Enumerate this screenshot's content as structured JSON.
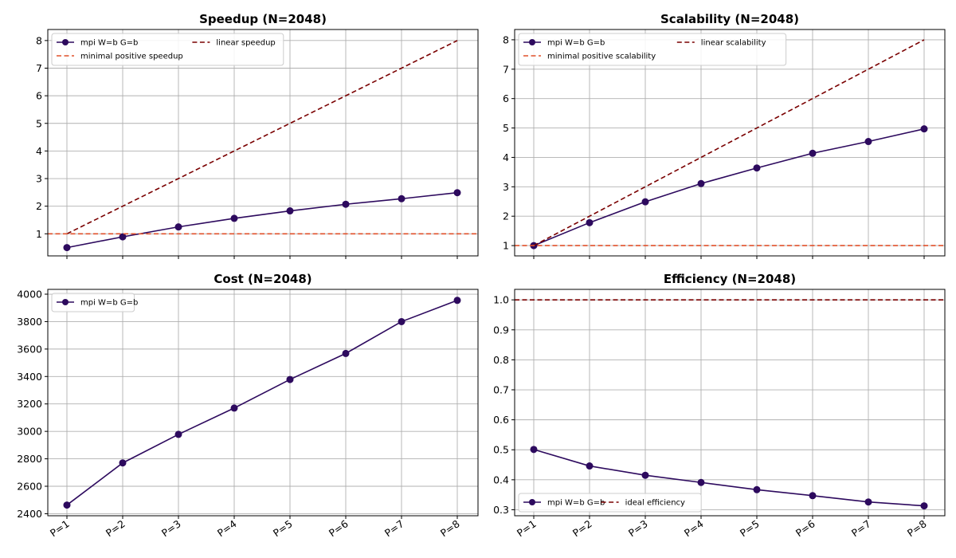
{
  "colors": {
    "mpi": "#2d0a5e",
    "linear": "#7a0000",
    "minimal": "#e0502a",
    "ideal": "#7a0000",
    "grid": "#b0b0b0"
  },
  "chart_data": [
    {
      "type": "line",
      "title": "Speedup (N=2048)",
      "categories": [
        "P=1",
        "P=2",
        "P=3",
        "P=4",
        "P=5",
        "P=6",
        "P=7",
        "P=8"
      ],
      "ylim": [
        0.2,
        8.4
      ],
      "yticks": [
        1,
        2,
        3,
        4,
        5,
        6,
        7,
        8
      ],
      "show_xticklabels": false,
      "grid": true,
      "legend": {
        "placement": "upper-left",
        "columns": 2
      },
      "series": [
        {
          "name": "mpi W=b G=b",
          "values": [
            0.5,
            0.89,
            1.25,
            1.56,
            1.83,
            2.07,
            2.27,
            2.49
          ],
          "style": "solid-marker",
          "color": "#2d0a5e"
        },
        {
          "name": "linear speedup",
          "values": [
            1,
            2,
            3,
            4,
            5,
            6,
            7,
            8
          ],
          "style": "dashed",
          "color": "#7a0000"
        },
        {
          "name": "minimal positive speedup",
          "hline": 1,
          "style": "dashed",
          "color": "#e0502a"
        }
      ]
    },
    {
      "type": "line",
      "title": "Scalability (N=2048)",
      "categories": [
        "P=1",
        "P=2",
        "P=3",
        "P=4",
        "P=5",
        "P=6",
        "P=7",
        "P=8"
      ],
      "ylim": [
        0.65,
        8.35
      ],
      "yticks": [
        1,
        2,
        3,
        4,
        5,
        6,
        7,
        8
      ],
      "show_xticklabels": false,
      "grid": true,
      "legend": {
        "placement": "upper-left",
        "columns": 2
      },
      "series": [
        {
          "name": "mpi W=b G=b",
          "values": [
            1.0,
            1.78,
            2.49,
            3.11,
            3.64,
            4.14,
            4.54,
            4.97
          ],
          "style": "solid-marker",
          "color": "#2d0a5e"
        },
        {
          "name": "linear scalability",
          "values": [
            1,
            2,
            3,
            4,
            5,
            6,
            7,
            8
          ],
          "style": "dashed",
          "color": "#7a0000"
        },
        {
          "name": "minimal positive scalability",
          "hline": 1,
          "style": "dashed",
          "color": "#e0502a"
        }
      ]
    },
    {
      "type": "line",
      "title": "Cost (N=2048)",
      "categories": [
        "P=1",
        "P=2",
        "P=3",
        "P=4",
        "P=5",
        "P=6",
        "P=7",
        "P=8"
      ],
      "ylim": [
        2385,
        4035
      ],
      "yticks": [
        2400,
        2600,
        2800,
        3000,
        3200,
        3400,
        3600,
        3800,
        4000
      ],
      "show_xticklabels": true,
      "grid": true,
      "legend": {
        "placement": "upper-left",
        "columns": 1
      },
      "series": [
        {
          "name": "mpi W=b G=b",
          "values": [
            2463,
            2770,
            2978,
            3170,
            3378,
            3568,
            3800,
            3955
          ],
          "style": "solid-marker",
          "color": "#2d0a5e"
        }
      ]
    },
    {
      "type": "line",
      "title": "Efficiency (N=2048)",
      "categories": [
        "P=1",
        "P=2",
        "P=3",
        "P=4",
        "P=5",
        "P=6",
        "P=7",
        "P=8"
      ],
      "ylim": [
        0.28,
        1.035
      ],
      "yticks": [
        0.3,
        0.4,
        0.5,
        0.6,
        0.7,
        0.8,
        0.9,
        1.0
      ],
      "ytick_labels": [
        "0.3",
        "0.4",
        "0.5",
        "0.6",
        "0.7",
        "0.8",
        "0.9",
        "1.0"
      ],
      "show_xticklabels": true,
      "grid": true,
      "legend": {
        "placement": "lower-left",
        "columns": 2
      },
      "series": [
        {
          "name": "mpi W=b G=b",
          "values": [
            0.501,
            0.446,
            0.415,
            0.391,
            0.367,
            0.347,
            0.326,
            0.313
          ],
          "style": "solid-marker",
          "color": "#2d0a5e"
        },
        {
          "name": "ideal efficiency",
          "hline": 1.0,
          "style": "dashed",
          "color": "#7a0000"
        }
      ]
    }
  ]
}
